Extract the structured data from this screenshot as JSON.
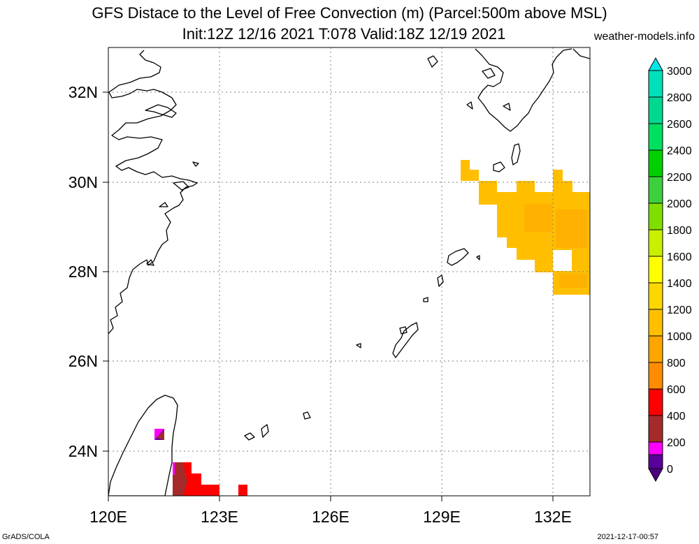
{
  "title_line1": "GFS Distace to the Level of Free Convection (m) (Parcel:500m above MSL)",
  "title_line2": "Init:12Z 12/16 2021 T:078 Valid:18Z 12/19 2021",
  "site": "weather-models.info",
  "footer_left": "GrADS/COLA",
  "footer_right": "2021-12-17-00:57",
  "map": {
    "lon_labels": [
      "120E",
      "123E",
      "126E",
      "129E",
      "132E"
    ],
    "lat_labels": [
      "32N",
      "30N",
      "28N",
      "26N",
      "24N"
    ],
    "lon_range": [
      120,
      133
    ],
    "lat_range": [
      23,
      33
    ]
  },
  "colorbar": {
    "labels": [
      "3000",
      "2800",
      "2600",
      "2400",
      "2200",
      "2000",
      "1800",
      "1600",
      "1400",
      "1200",
      "1000",
      "800",
      "600",
      "400",
      "200",
      "0"
    ],
    "colors": {
      "below_0": "#4b0082",
      "0_200": "#5a009a",
      "200_400": "#ff00ff",
      "400_600": "#a52a2a",
      "600_800": "#ff0000",
      "800_1000": "#ffa500",
      "1000_1200": "#ffbf00",
      "1200_1400": "#ffd700",
      "1400_1600": "#ffff00",
      "1600_1800": "#c8f000",
      "1800_2000": "#7fe000",
      "2000_2200": "#3cd03c",
      "2200_2400": "#00d000",
      "2400_2600": "#00e060",
      "2600_2800": "#00d890",
      "2800_3000": "#00e0b8",
      "above_3000": "#00e8e8"
    }
  }
}
